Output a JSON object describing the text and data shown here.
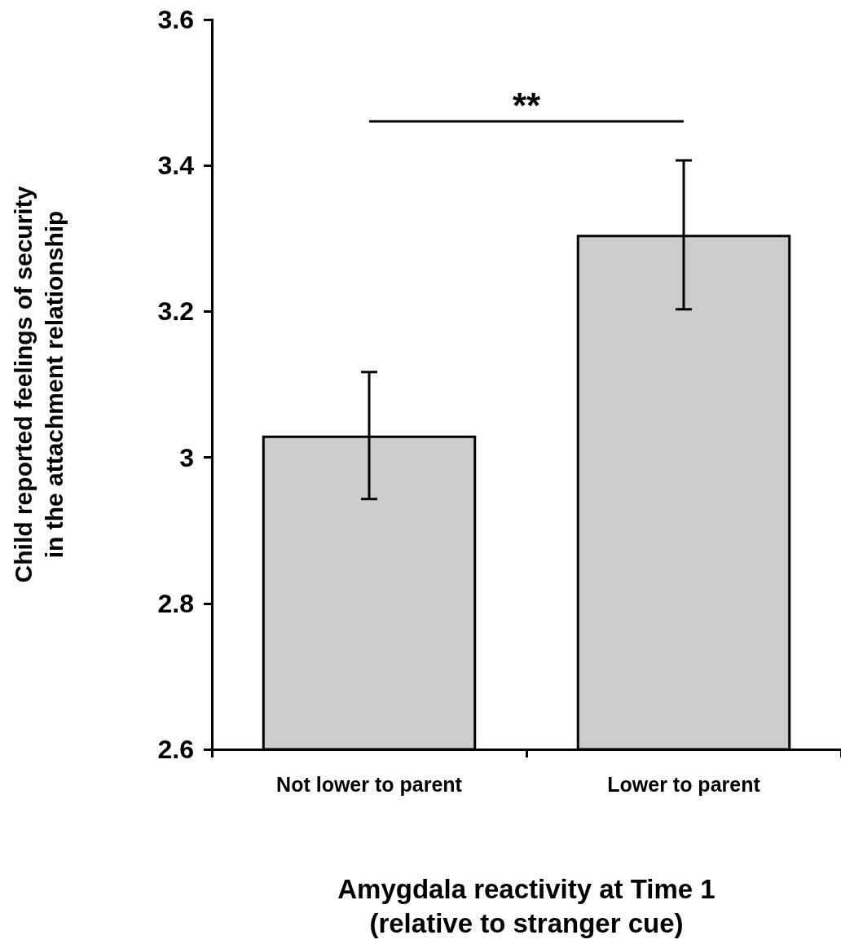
{
  "chart_data": {
    "type": "bar",
    "xlabel": "Amygdala reactivity at Time 1\n(relative to stranger cue)",
    "ylabel": "Child reported feelings of security\nin the attachment relationship",
    "categories": [
      "Not lower to parent",
      "Lower to parent"
    ],
    "values": [
      3.03,
      3.305
    ],
    "errors": [
      0.087,
      0.102
    ],
    "color": "#cccccc",
    "ylim": [
      2.6,
      3.6
    ],
    "yticks": [
      {
        "value": 2.6,
        "label": "2.6"
      },
      {
        "value": 2.8,
        "label": "2.8"
      },
      {
        "value": 3,
        "label": "3"
      },
      {
        "value": 3.2,
        "label": "3.2"
      },
      {
        "value": 3.4,
        "label": "3.4"
      },
      {
        "value": 3.6,
        "label": "3.6"
      }
    ],
    "grid": false,
    "annotations": [
      "**"
    ]
  }
}
